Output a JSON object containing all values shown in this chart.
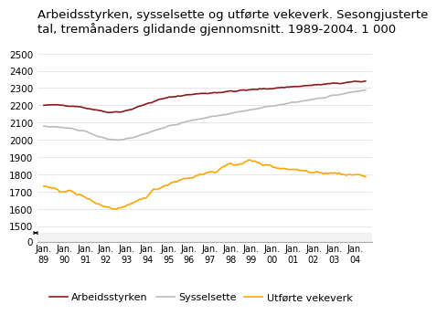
{
  "title_line1": "Arbeidsstyrken, sysselsette og utførte vekeverk. Sesongjusterte",
  "title_line2": "tal, tremånaders glidande gjennomsnitt. 1989-2004. 1 000",
  "arbeidsstyrken_color": "#8B1A1A",
  "sysselsette_color": "#BBBBBB",
  "vekeverk_color": "#FFA500",
  "legend_labels": [
    "Arbeidsstyrken",
    "Sysselsette",
    "Utførte vekeverk"
  ],
  "background_color": "#ffffff",
  "grid_color": "#dddddd",
  "title_fontsize": 9.5,
  "axis_fontsize": 7.5,
  "legend_fontsize": 8,
  "x_labels": [
    "Jan.\n89",
    "Jan.\n90",
    "Jan.\n91",
    "Jan.\n92",
    "Jan.\n93",
    "Jan.\n94",
    "Jan.\n95",
    "Jan.\n96",
    "Jan.\n97",
    "Jan.\n98",
    "Jan.\n99",
    "Jan.\n00",
    "Jan.\n01",
    "Jan.\n02",
    "Jan.\n03",
    "Jan.\n04"
  ],
  "yticks_main": [
    1500,
    1600,
    1700,
    1800,
    1900,
    2000,
    2100,
    2200,
    2300,
    2400,
    2500
  ],
  "ytick_labels_main": [
    "1500",
    "1600",
    "1700",
    "1800",
    "1900",
    "2000",
    "2100",
    "2200",
    "2300",
    "2400",
    "2500"
  ],
  "ylim_main": [
    1460,
    2560
  ],
  "ylim_break": [
    0,
    30
  ],
  "yticks_break": [
    0
  ],
  "ytick_labels_break": [
    "0"
  ]
}
